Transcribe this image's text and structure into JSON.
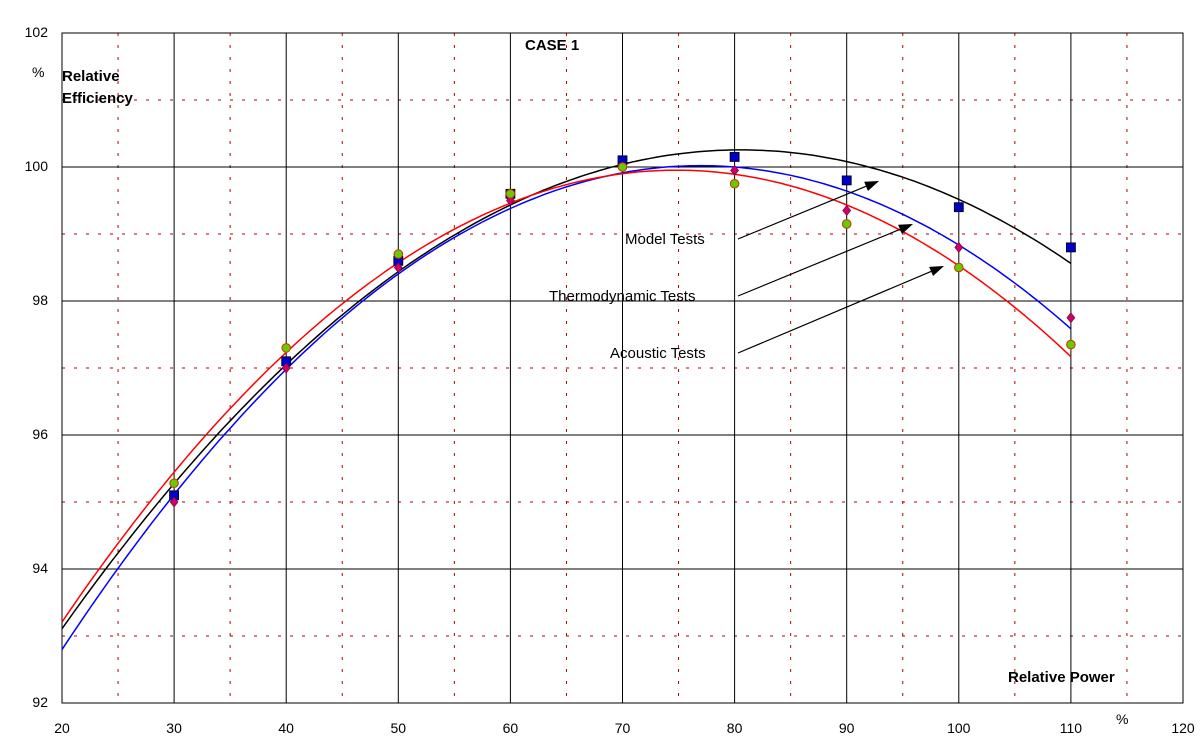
{
  "chart_data": {
    "type": "scatter",
    "title": "CASE 1",
    "ylabel_unit": "%",
    "ylabel_line1": "Relative",
    "ylabel_line2": "Efficiency",
    "xlabel": "Relative Power",
    "xlabel_unit": "%",
    "xlim": [
      20,
      120
    ],
    "ylim": [
      92,
      102
    ],
    "x_ticks": [
      20,
      30,
      40,
      50,
      60,
      70,
      80,
      90,
      100,
      110,
      120
    ],
    "y_ticks": [
      92,
      94,
      96,
      98,
      100,
      102
    ],
    "grid": {
      "major": true,
      "minor": true
    },
    "series": [
      {
        "name": "Model Tests",
        "color": "#000000",
        "marker": "square",
        "marker_color": "#0000cc",
        "x": [
          30,
          40,
          50,
          60,
          70,
          80,
          90,
          100,
          110
        ],
        "y": [
          95.1,
          97.1,
          98.6,
          99.6,
          100.1,
          100.15,
          99.8,
          99.4,
          98.8
        ]
      },
      {
        "name": "Thermodynamic Tests",
        "color": "#0000ff",
        "marker": "diamond",
        "marker_color": "#cc0066",
        "x": [
          30,
          40,
          50,
          60,
          70,
          80,
          90,
          100,
          110
        ],
        "y": [
          95.0,
          97.0,
          98.5,
          99.5,
          100.0,
          99.95,
          99.35,
          98.8,
          97.75
        ]
      },
      {
        "name": "Acoustic Tests",
        "color": "#ff0000",
        "marker": "circle",
        "marker_color": "#66cc00",
        "x": [
          30,
          40,
          50,
          60,
          70,
          80,
          90,
          100,
          110
        ],
        "y": [
          95.28,
          97.3,
          98.7,
          99.6,
          100.0,
          99.75,
          99.15,
          98.5,
          97.35
        ]
      }
    ]
  }
}
